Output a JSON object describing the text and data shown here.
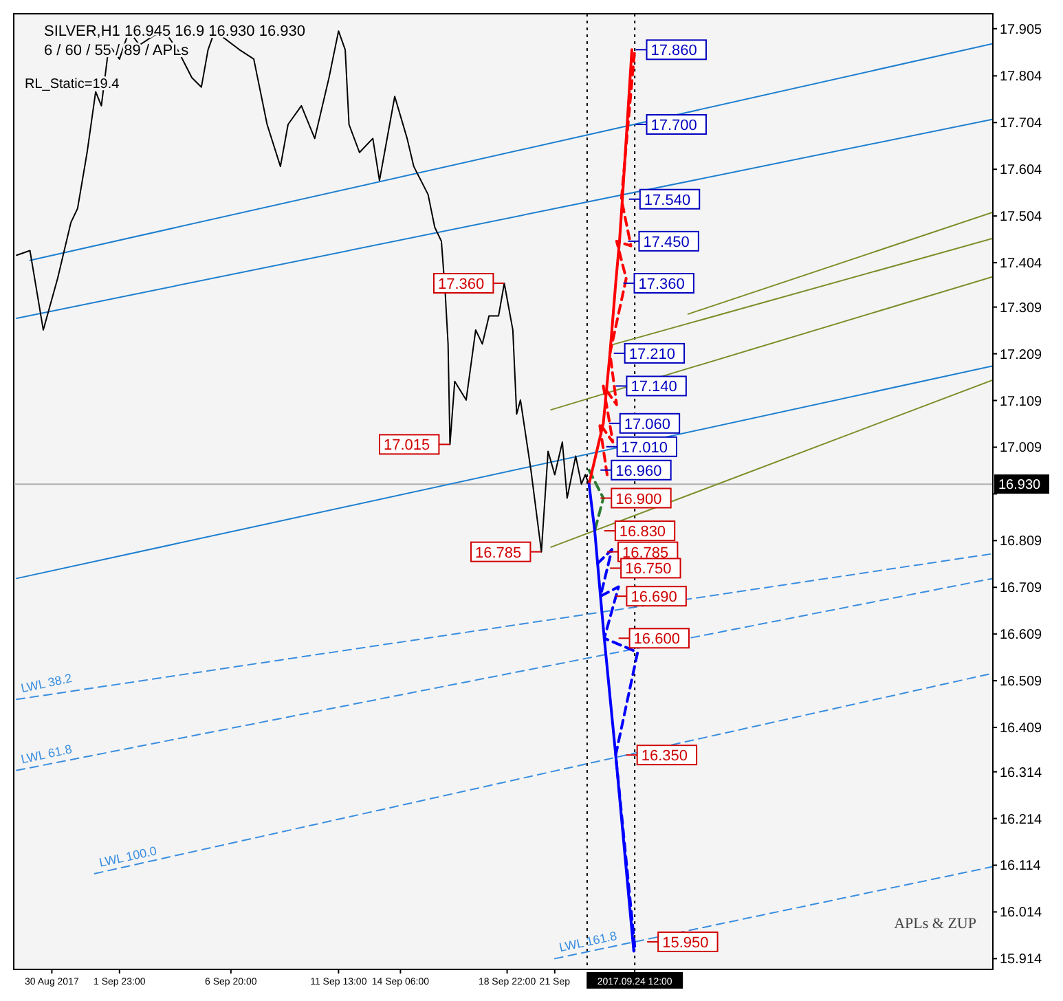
{
  "chart_data": {
    "type": "line",
    "title": "SILVER,H1  16.945  16.9  16.930  16.930",
    "subtitle": "6 / 60 / 55 / 89 / APLs",
    "xlim": [
      "2017-08-28T08:00",
      "2017-10-10T04:00"
    ],
    "ylim": [
      15.891,
      17.937
    ],
    "xticks": [
      {
        "value": "2017-08-30T00:00",
        "label": "30 Aug 2017"
      },
      {
        "value": "2017-09-01T23:00",
        "label": "1 Sep 23:00"
      },
      {
        "value": "2017-09-06T20:00",
        "label": "6 Sep 20:00"
      },
      {
        "value": "2017-09-11T13:00",
        "label": "11 Sep 13:00"
      },
      {
        "value": "2017-09-14T06:00",
        "label": "14 Sep 06:00"
      },
      {
        "value": "2017-09-18T22:00",
        "label": "18 Sep 22:00"
      },
      {
        "value": "2017-09-21T00:00",
        "label": "21 Sep"
      },
      {
        "value": "2017-09-24T12:00",
        "label": "2017.09.24 12:00"
      }
    ],
    "yticks": [
      17.905,
      17.804,
      17.704,
      17.604,
      17.504,
      17.404,
      17.309,
      17.209,
      17.109,
      17.009,
      {
        "value": 16.909,
        "label": null
      },
      16.809,
      16.709,
      16.609,
      16.509,
      16.409,
      16.314,
      16.214,
      16.114,
      16.014,
      15.914
    ],
    "series": [
      {
        "type": "line",
        "color": "#1e7fd0",
        "line_style": "solid",
        "x": [
          "2017-08-29T01:00",
          "2017-10-10T04:00"
        ],
        "values": [
          17.409,
          17.873
        ]
      },
      {
        "type": "line",
        "color": "#1e7fd0",
        "line_style": "solid",
        "x": [
          "2017-08-28T11:00",
          "2017-10-10T04:00"
        ],
        "values": [
          17.285,
          17.711
        ]
      },
      {
        "type": "line",
        "color": "#1e7fd0",
        "line_style": "solid",
        "x": [
          "2017-08-28T11:00",
          "2017-10-10T04:00"
        ],
        "values": [
          16.728,
          17.183
        ]
      },
      {
        "type": "line",
        "color": "#7a8f2a",
        "line_style": "solid",
        "x": [
          "2017-09-20T20:00",
          "2017-10-10T04:00"
        ],
        "values": [
          16.795,
          17.153
        ]
      },
      {
        "type": "line",
        "color": "#7a8f2a",
        "line_style": "solid",
        "x": [
          "2017-09-20T20:00",
          "2017-10-10T04:00"
        ],
        "values": [
          17.089,
          17.374
        ]
      },
      {
        "type": "line",
        "color": "#7a8f2a",
        "line_style": "solid",
        "x": [
          "2017-09-23T10:00",
          "2017-10-10T04:00"
        ],
        "values": [
          17.227,
          17.456
        ]
      },
      {
        "type": "line",
        "color": "#7a8f2a",
        "line_style": "solid",
        "x": [
          "2017-09-26T20:00",
          "2017-10-10T04:00"
        ],
        "values": [
          17.294,
          17.512
        ]
      },
      {
        "name": "LWL 38.2",
        "type": "line",
        "color": "#3a8ee0",
        "line_style": "dashed",
        "x": [
          "2017-08-28T11:00",
          "2017-10-10T04:00"
        ],
        "values": [
          16.469,
          16.781
        ]
      },
      {
        "name": "LWL 61.8",
        "type": "line",
        "color": "#3a8ee0",
        "line_style": "dashed",
        "x": [
          "2017-08-28T11:00",
          "2017-10-10T04:00"
        ],
        "values": [
          16.317,
          16.728
        ]
      },
      {
        "name": "LWL 100.0",
        "type": "line",
        "color": "#3a8ee0",
        "line_style": "dashed",
        "x": [
          "2017-08-31T21:00",
          "2017-10-10T04:00"
        ],
        "values": [
          16.096,
          16.525
        ]
      },
      {
        "name": "LWL 161.8",
        "type": "line",
        "color": "#3a8ee0",
        "line_style": "dashed",
        "x": [
          "2017-09-21T00:00",
          "2017-10-10T04:00"
        ],
        "values": [
          15.914,
          16.111
        ]
      },
      {
        "type": "line",
        "color": "#000000",
        "line_style": "solid",
        "x": [
          "2017-08-28T11:00",
          "2017-08-29T01:00",
          "2017-08-29T15:00",
          "2017-08-30T06:00",
          "2017-08-30T20:00",
          "2017-08-31T03:00",
          "2017-08-31T13:00",
          "2017-08-31T22:00",
          "2017-09-01T04:00",
          "2017-09-01T12:00",
          "2017-09-01T23:00",
          "2017-09-02T09:00",
          "2017-09-02T20:00",
          "2017-09-03T11:00",
          "2017-09-03T22:00",
          "2017-09-04T12:00",
          "2017-09-05T03:00",
          "2017-09-05T13:00",
          "2017-09-05T20:00",
          "2017-09-06T03:00",
          "2017-09-07T05:00",
          "2017-09-07T20:00",
          "2017-09-08T10:00",
          "2017-09-09T00:00",
          "2017-09-09T08:00",
          "2017-09-09T22:00",
          "2017-09-10T12:00",
          "2017-09-11T03:00",
          "2017-09-11T13:00",
          "2017-09-11T20:00",
          "2017-09-12T00:00",
          "2017-09-12T11:00",
          "2017-09-13T01:00",
          "2017-09-13T08:00",
          "2017-09-14T00:00",
          "2017-09-14T13:00",
          "2017-09-14T20:00",
          "2017-09-15T11:00",
          "2017-09-15T18:00",
          "2017-09-16T01:00",
          "2017-09-16T05:00",
          "2017-09-16T08:00",
          "2017-09-16T10:00",
          "2017-09-16T15:00",
          "2017-09-17T03:00",
          "2017-09-17T13:00",
          "2017-09-17T20:00",
          "2017-09-18T03:00",
          "2017-09-18T13:00",
          "2017-09-18T19:00",
          "2017-09-19T04:00",
          "2017-09-19T08:00",
          "2017-09-19T12:00",
          "2017-09-19T23:00",
          "2017-09-20T10:00",
          "2017-09-20T17:00",
          "2017-09-21T00:00",
          "2017-09-21T08:00",
          "2017-09-21T13:00",
          "2017-09-21T22:00",
          "2017-09-22T04:00",
          "2017-09-22T08:00",
          "2017-09-22T12:00"
        ],
        "values": [
          17.42,
          17.43,
          17.26,
          17.37,
          17.49,
          17.52,
          17.64,
          17.77,
          17.74,
          17.87,
          17.84,
          17.9,
          17.87,
          17.89,
          17.9,
          17.86,
          17.8,
          17.78,
          17.86,
          17.9,
          17.86,
          17.84,
          17.7,
          17.61,
          17.7,
          17.74,
          17.67,
          17.8,
          17.9,
          17.86,
          17.7,
          17.64,
          17.67,
          17.58,
          17.76,
          17.67,
          17.61,
          17.55,
          17.48,
          17.45,
          17.34,
          17.23,
          17.015,
          17.15,
          17.11,
          17.26,
          17.23,
          17.29,
          17.29,
          17.36,
          17.26,
          17.08,
          17.11,
          16.96,
          16.785,
          17.0,
          16.95,
          17.02,
          16.9,
          16.99,
          16.93,
          16.95,
          16.93
        ]
      },
      {
        "type": "line",
        "color": "#2e7d32",
        "line_style": "dashed",
        "x": [
          "2017-09-22T12:00",
          "2017-09-23T03:00",
          "2017-09-22T18:00"
        ],
        "values": [
          16.96,
          16.9,
          16.83
        ]
      },
      {
        "type": "line",
        "color": "#ff0000",
        "line_style": "solid",
        "x": [
          "2017-09-22T12:00",
          "2017-09-23T03:00",
          "2017-09-23T10:00",
          "2017-09-23T16:00",
          "2017-09-23T20:00",
          "2017-09-23T23:00",
          "2017-09-24T09:00"
        ],
        "values": [
          16.93,
          17.06,
          17.21,
          17.36,
          17.45,
          17.54,
          17.86
        ]
      },
      {
        "type": "line",
        "color": "#ff0000",
        "line_style": "dashed",
        "x": [
          "2017-09-23T07:00",
          "2017-09-22T23:00",
          "2017-09-23T13:00",
          "2017-09-23T03:00",
          "2017-09-23T17:00",
          "2017-09-23T10:00",
          "2017-09-24T03:00",
          "2017-09-23T17:00",
          "2017-09-24T08:00",
          "2017-09-23T22:00",
          "2017-09-24T12:00"
        ],
        "values": [
          16.95,
          17.06,
          17.02,
          17.14,
          17.1,
          17.21,
          17.37,
          17.45,
          17.44,
          17.54,
          17.86
        ]
      },
      {
        "type": "line",
        "color": "#0000ff",
        "line_style": "solid",
        "x": [
          "2017-09-22T12:00",
          "2017-09-22T18:00",
          "2017-09-22T21:00",
          "2017-09-23T00:00",
          "2017-09-23T04:00",
          "2017-09-23T16:00",
          "2017-09-24T11:00"
        ],
        "values": [
          16.93,
          16.83,
          16.76,
          16.69,
          16.6,
          16.35,
          15.93
        ]
      },
      {
        "type": "line",
        "color": "#0000ff",
        "line_style": "dashed",
        "x": [
          "2017-09-22T21:00",
          "2017-09-23T12:00",
          "2017-09-23T00:00",
          "2017-09-23T19:00",
          "2017-09-23T04:00",
          "2017-09-24T15:00",
          "2017-09-23T16:00",
          "2017-09-24T12:00"
        ],
        "values": [
          16.76,
          16.79,
          16.69,
          16.71,
          16.6,
          16.57,
          16.35,
          15.94
        ]
      }
    ],
    "ref_lines": [
      {
        "axis": "y",
        "value": 16.93,
        "label": "16.930",
        "color": "#b0b0b0",
        "line_style": "solid"
      },
      {
        "axis": "x",
        "value": "2017-09-22T10:00",
        "color": "#000000",
        "line_style": "dotted"
      },
      {
        "axis": "x",
        "value": "2017-09-24T12:00",
        "color": "#000000",
        "line_style": "dotted"
      }
    ],
    "annotations": [
      "RL_Static=19.4",
      "APLs & ZUP",
      {
        "text": "17.860",
        "x": "2017-09-24T13:00",
        "y": 17.86
      },
      {
        "text": "17.700",
        "x": "2017-09-24T13:00",
        "y": 17.7
      },
      {
        "text": "17.540",
        "x": "2017-09-24T06:00",
        "y": 17.54
      },
      {
        "text": "17.450",
        "x": "2017-09-24T05:00",
        "y": 17.45
      },
      {
        "text": "17.360",
        "x": "2017-09-24T00:00",
        "y": 17.36
      },
      {
        "text": "17.210",
        "x": "2017-09-23T14:00",
        "y": 17.21
      },
      {
        "text": "17.140",
        "x": "2017-09-23T16:00",
        "y": 17.14
      },
      {
        "text": "17.060",
        "x": "2017-09-23T09:00",
        "y": 17.06
      },
      {
        "text": "17.010",
        "x": "2017-09-23T06:00",
        "y": 17.01
      },
      {
        "text": "16.960",
        "x": "2017-09-23T00:00",
        "y": 16.96
      },
      {
        "text": "16.900",
        "x": "2017-09-23T00:00",
        "y": 16.9
      },
      {
        "text": "16.830",
        "x": "2017-09-23T04:00",
        "y": 16.83
      },
      {
        "text": "16.785",
        "x": "2017-09-23T07:00",
        "y": 16.785
      },
      {
        "text": "16.750",
        "x": "2017-09-23T10:00",
        "y": 16.75
      },
      {
        "text": "16.690",
        "x": "2017-09-23T16:00",
        "y": 16.69
      },
      {
        "text": "16.600",
        "x": "2017-09-23T19:00",
        "y": 16.6
      },
      {
        "text": "16.350",
        "x": "2017-09-24T03:00",
        "y": 16.35
      },
      {
        "text": "15.950",
        "x": "2017-09-25T01:00",
        "y": 15.95
      },
      {
        "text": "17.360",
        "x": "2017-09-18T19:00",
        "y": 17.36
      },
      {
        "text": "17.015",
        "x": "2017-09-16T10:00",
        "y": 17.015
      },
      {
        "text": "16.785",
        "x": "2017-09-20T10:00",
        "y": 16.785
      }
    ]
  }
}
